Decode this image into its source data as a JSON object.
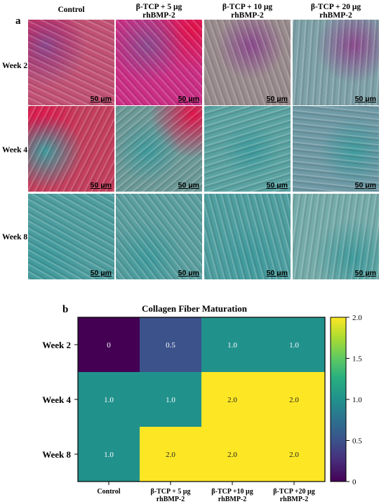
{
  "panel_a": {
    "letter": "a",
    "columns": [
      "Control",
      "β-TCP + 5 μg\nrhBMP-2",
      "β-TCP + 10 μg\nrhBMP-2",
      "β-TCP + 20 μg\nrhBMP-2"
    ],
    "rows": [
      "Week 2",
      "Week 4",
      "Week 8"
    ],
    "scale_bar": "50 μm",
    "tile_colors": [
      [
        "#c25276",
        "#cc2f86",
        "#9a8c8e",
        "#7ea2a8"
      ],
      [
        "#c4405e",
        "#6c9a98",
        "#5ba3a3",
        "#6f9aa6"
      ],
      [
        "#4f9ea0",
        "#5b9fa0",
        "#4f9fa1",
        "#75acaa"
      ]
    ],
    "accent_colors": {
      "stain_red": "#e3124a",
      "stain_teal": "#3f9b9d",
      "stain_purple": "#8c4a8e"
    }
  },
  "chart_data": {
    "type": "heatmap",
    "letter": "b",
    "title": "Collagen Fiber Maturation",
    "rows": [
      "Week 2",
      "Week 4",
      "Week 8"
    ],
    "columns": [
      "Control",
      "β-TCP + 5 μg\nrhBMP-2",
      "β-TCP +10 μg\nrhBMP-2",
      "β-TCP +20 μg\nrhBMP-2"
    ],
    "values": [
      [
        0,
        0.5,
        1.0,
        1.0
      ],
      [
        1.0,
        1.0,
        2.0,
        2.0
      ],
      [
        1.0,
        2.0,
        2.0,
        2.0
      ]
    ],
    "cell_labels": [
      [
        "0",
        "0.5",
        "1.0",
        "1.0"
      ],
      [
        "1.0",
        "1.0",
        "2.0",
        "2.0"
      ],
      [
        "1.0",
        "2.0",
        "2.0",
        "2.0"
      ]
    ],
    "colorscale": "viridis",
    "vmin": 0,
    "vmax": 2,
    "colorbar_ticks": [
      "0",
      "0.5",
      "1.0",
      "1.5",
      "2.0"
    ],
    "colorbar_tick_values": [
      0,
      0.5,
      1.0,
      1.5,
      2.0
    ]
  }
}
